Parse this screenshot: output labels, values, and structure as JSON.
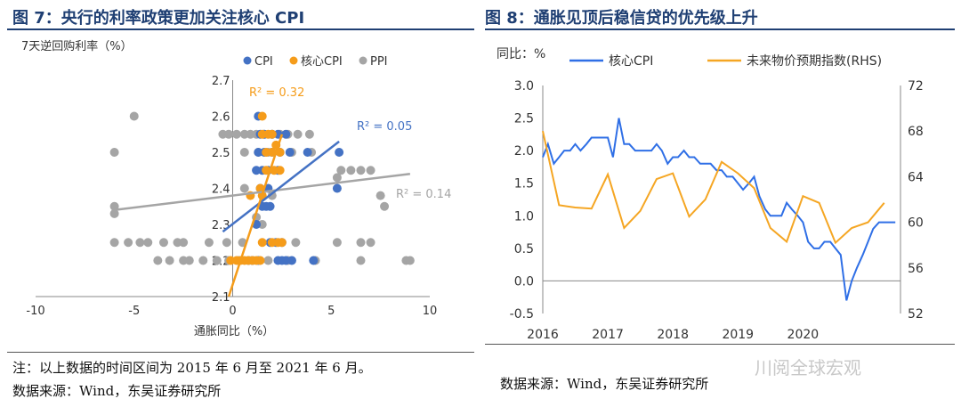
{
  "left": {
    "title": "图 7：央行的利率政策更加关注核心 CPI",
    "note": "注：以上数据的时间区间为 2015 年 6 月至 2021 年 6 月。",
    "source": "数据来源：Wind，东吴证券研究所"
  },
  "right": {
    "title": "图 8：通胀见顶后稳信贷的优先级上升",
    "source": "数据来源：Wind，东吴证券研究所"
  },
  "watermark": "川阅全球宏观",
  "colors": {
    "blue": "#4472c4",
    "orange": "#f59c1a",
    "gray": "#a5a5a5",
    "blue_line": "#2f6fe6",
    "orange_line": "#f5a623"
  },
  "chart_data": [
    {
      "type": "scatter",
      "ylabel": "7天逆回购利率（%）",
      "xlabel": "通胀同比（%）",
      "xlim": [
        -10,
        10
      ],
      "ylim": [
        2.1,
        2.7
      ],
      "xticks": [
        "-10",
        "-5",
        "0",
        "5",
        "10"
      ],
      "yticks": [
        "2.1",
        "2.2",
        "2.3",
        "2.4",
        "2.5",
        "2.6",
        "2.7"
      ],
      "legend": [
        "CPI",
        "核心CPI",
        "PPI"
      ],
      "r2_labels": {
        "CPI": "R² = 0.05",
        "核心CPI": "R² = 0.32",
        "PPI": "R² = 0.14"
      },
      "series": [
        {
          "name": "PPI",
          "points": [
            [
              -5,
              2.6
            ],
            [
              -6,
              2.5
            ],
            [
              -6,
              2.35
            ],
            [
              -6,
              2.33
            ],
            [
              -6,
              2.25
            ],
            [
              -5.3,
              2.25
            ],
            [
              -4.7,
              2.25
            ],
            [
              -4.3,
              2.25
            ],
            [
              -3.5,
              2.25
            ],
            [
              -2.8,
              2.25
            ],
            [
              -2.5,
              2.25
            ],
            [
              -1.2,
              2.25
            ],
            [
              -0.3,
              2.25
            ],
            [
              0.5,
              2.25
            ],
            [
              3.2,
              2.25
            ],
            [
              5.3,
              2.25
            ],
            [
              6.5,
              2.25
            ],
            [
              7,
              2.25
            ],
            [
              -3.8,
              2.2
            ],
            [
              -3.2,
              2.2
            ],
            [
              -2.5,
              2.2
            ],
            [
              -2.2,
              2.2
            ],
            [
              -1.5,
              2.2
            ],
            [
              -0.8,
              2.2
            ],
            [
              -0.2,
              2.2
            ],
            [
              0.3,
              2.2
            ],
            [
              1,
              2.2
            ],
            [
              1.8,
              2.2
            ],
            [
              2.8,
              2.2
            ],
            [
              4.2,
              2.2
            ],
            [
              6.5,
              2.2
            ],
            [
              8.8,
              2.2
            ],
            [
              9,
              2.2
            ],
            [
              -0.5,
              2.55
            ],
            [
              -0.2,
              2.55
            ],
            [
              0.2,
              2.55
            ],
            [
              0.6,
              2.55
            ],
            [
              0.9,
              2.55
            ],
            [
              1.2,
              2.55
            ],
            [
              1.6,
              2.55
            ],
            [
              2,
              2.55
            ],
            [
              2.4,
              2.55
            ],
            [
              2.8,
              2.55
            ],
            [
              3.3,
              2.55
            ],
            [
              3.9,
              2.55
            ],
            [
              0.6,
              2.5
            ],
            [
              1.3,
              2.5
            ],
            [
              1.8,
              2.5
            ],
            [
              3,
              2.5
            ],
            [
              4,
              2.5
            ],
            [
              5.5,
              2.45
            ],
            [
              6,
              2.45
            ],
            [
              6.5,
              2.45
            ],
            [
              7,
              2.45
            ],
            [
              5.3,
              2.43
            ],
            [
              0.6,
              2.4
            ],
            [
              2,
              2.38
            ],
            [
              7.5,
              2.38
            ],
            [
              7.7,
              2.35
            ],
            [
              1.2,
              2.32
            ],
            [
              1.5,
              2.3
            ]
          ]
        },
        {
          "name": "CPI",
          "points": [
            [
              1.3,
              2.6
            ],
            [
              1.4,
              2.55
            ],
            [
              1.6,
              2.55
            ],
            [
              2,
              2.55
            ],
            [
              2.3,
              2.55
            ],
            [
              2.7,
              2.55
            ],
            [
              1.3,
              2.5
            ],
            [
              1.6,
              2.5
            ],
            [
              2,
              2.5
            ],
            [
              2.4,
              2.5
            ],
            [
              2.9,
              2.5
            ],
            [
              3.8,
              2.5
            ],
            [
              5.4,
              2.5
            ],
            [
              1.2,
              2.45
            ],
            [
              1.5,
              2.45
            ],
            [
              1.8,
              2.45
            ],
            [
              2.3,
              2.45
            ],
            [
              1.8,
              2.4
            ],
            [
              1.4,
              2.4
            ],
            [
              5.3,
              2.4
            ],
            [
              1.5,
              2.35
            ],
            [
              1.7,
              2.35
            ],
            [
              1.9,
              2.35
            ],
            [
              1.2,
              2.3
            ],
            [
              1.9,
              2.25
            ],
            [
              2.2,
              2.25
            ],
            [
              2.5,
              2.25
            ],
            [
              0.8,
              2.2
            ],
            [
              1,
              2.2
            ],
            [
              1.3,
              2.2
            ],
            [
              2.3,
              2.2
            ],
            [
              2.5,
              2.2
            ],
            [
              2.7,
              2.2
            ],
            [
              3,
              2.2
            ],
            [
              4.1,
              2.2
            ]
          ]
        },
        {
          "name": "核心CPI",
          "points": [
            [
              1.5,
              2.6
            ],
            [
              1.5,
              2.55
            ],
            [
              1.8,
              2.55
            ],
            [
              2,
              2.55
            ],
            [
              2.2,
              2.52
            ],
            [
              1.7,
              2.5
            ],
            [
              2,
              2.5
            ],
            [
              2.4,
              2.5
            ],
            [
              1.7,
              2.45
            ],
            [
              2.1,
              2.45
            ],
            [
              2.4,
              2.45
            ],
            [
              1.4,
              2.4
            ],
            [
              1.5,
              2.38
            ],
            [
              0.9,
              2.38
            ],
            [
              2,
              2.25
            ],
            [
              1.5,
              2.25
            ],
            [
              2.3,
              2.25
            ],
            [
              2.5,
              2.25
            ],
            [
              -0.1,
              2.2
            ],
            [
              0.2,
              2.2
            ],
            [
              0.4,
              2.2
            ],
            [
              0.6,
              2.2
            ],
            [
              0.8,
              2.2
            ],
            [
              1,
              2.2
            ],
            [
              1.2,
              2.2
            ],
            [
              1.4,
              2.2
            ]
          ]
        }
      ],
      "trendlines": [
        {
          "name": "PPI",
          "from": [
            -6,
            2.34
          ],
          "to": [
            9,
            2.44
          ]
        },
        {
          "name": "CPI",
          "from": [
            -0.5,
            2.28
          ],
          "to": [
            5.4,
            2.53
          ]
        },
        {
          "name": "核心CPI",
          "from": [
            -0.2,
            2.1
          ],
          "to": [
            2.5,
            2.55
          ]
        }
      ]
    },
    {
      "type": "line",
      "ylabel": "同比：%",
      "x_labels": [
        "2016",
        "2017",
        "2018",
        "2019",
        "2020"
      ],
      "x_range": [
        2016.0,
        2021.5
      ],
      "ylim_left": [
        -0.5,
        3.0
      ],
      "ylim_right": [
        52,
        72
      ],
      "yticks_left": [
        "-0.5",
        "0.0",
        "0.5",
        "1.0",
        "1.5",
        "2.0",
        "2.5",
        "3.0"
      ],
      "yticks_right": [
        "52",
        "56",
        "60",
        "64",
        "68",
        "72"
      ],
      "legend": [
        "核心CPI",
        "未来物价预期指数(RHS)"
      ],
      "series": [
        {
          "name": "核心CPI",
          "axis": "left",
          "x": [
            2016.0,
            2016.08,
            2016.17,
            2016.25,
            2016.33,
            2016.42,
            2016.5,
            2016.58,
            2016.67,
            2016.75,
            2016.83,
            2016.92,
            2017.0,
            2017.08,
            2017.17,
            2017.25,
            2017.33,
            2017.42,
            2017.5,
            2017.58,
            2017.67,
            2017.75,
            2017.83,
            2017.92,
            2018.0,
            2018.08,
            2018.17,
            2018.25,
            2018.33,
            2018.42,
            2018.5,
            2018.58,
            2018.67,
            2018.75,
            2018.83,
            2018.92,
            2019.0,
            2019.08,
            2019.17,
            2019.25,
            2019.33,
            2019.42,
            2019.5,
            2019.58,
            2019.67,
            2019.75,
            2019.83,
            2019.92,
            2020.0,
            2020.08,
            2020.17,
            2020.25,
            2020.33,
            2020.42,
            2020.5,
            2020.58,
            2020.67,
            2020.75,
            2020.83,
            2020.92,
            2021.0,
            2021.08,
            2021.17,
            2021.25,
            2021.33,
            2021.42
          ],
          "values": [
            1.9,
            2.1,
            1.8,
            1.9,
            2.0,
            2.0,
            2.1,
            2.0,
            2.1,
            2.2,
            2.2,
            2.2,
            2.2,
            1.9,
            2.5,
            2.1,
            2.1,
            2.0,
            2.0,
            2.0,
            2.0,
            2.1,
            2.0,
            1.8,
            1.9,
            1.9,
            2.0,
            1.9,
            1.9,
            1.8,
            1.8,
            1.8,
            1.7,
            1.7,
            1.6,
            1.6,
            1.5,
            1.4,
            1.5,
            1.6,
            1.3,
            1.1,
            1.0,
            1.0,
            1.0,
            1.2,
            1.1,
            1.0,
            0.9,
            0.6,
            0.5,
            0.5,
            0.6,
            0.6,
            0.5,
            0.4,
            -0.3,
            0.0,
            0.2,
            0.4,
            0.6,
            0.8,
            0.9,
            0.9,
            0.9,
            0.9
          ]
        },
        {
          "name": "未来物价预期指数(RHS)",
          "axis": "right",
          "x": [
            2016.0,
            2016.25,
            2016.5,
            2016.75,
            2017.0,
            2017.25,
            2017.5,
            2017.75,
            2018.0,
            2018.25,
            2018.5,
            2018.75,
            2019.0,
            2019.25,
            2019.5,
            2019.75,
            2020.0,
            2020.25,
            2020.5,
            2020.75,
            2021.0,
            2021.25
          ],
          "values": [
            68,
            61.5,
            61.3,
            61.2,
            64.2,
            59.5,
            61,
            63.8,
            64.3,
            60.5,
            62,
            65.3,
            64.3,
            63,
            59.5,
            58.3,
            62.3,
            61.7,
            58.2,
            59.5,
            60,
            61.7
          ]
        }
      ]
    }
  ]
}
